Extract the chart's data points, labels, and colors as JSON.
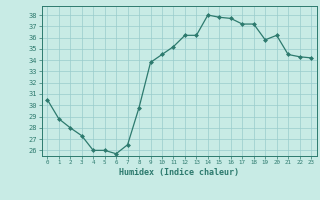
{
  "x": [
    0,
    1,
    2,
    3,
    4,
    5,
    6,
    7,
    8,
    9,
    10,
    11,
    12,
    13,
    14,
    15,
    16,
    17,
    18,
    19,
    20,
    21,
    22,
    23
  ],
  "y": [
    30.5,
    28.8,
    28.0,
    27.3,
    26.0,
    26.0,
    25.7,
    26.5,
    29.8,
    33.8,
    34.5,
    35.2,
    36.2,
    36.2,
    38.0,
    37.8,
    37.7,
    37.2,
    37.2,
    35.8,
    36.2,
    34.5,
    34.3,
    34.2
  ],
  "xlabel": "Humidex (Indice chaleur)",
  "ylim": [
    25.5,
    38.8
  ],
  "xlim": [
    -0.5,
    23.5
  ],
  "yticks": [
    26,
    27,
    28,
    29,
    30,
    31,
    32,
    33,
    34,
    35,
    36,
    37,
    38
  ],
  "xticks": [
    0,
    1,
    2,
    3,
    4,
    5,
    6,
    7,
    8,
    9,
    10,
    11,
    12,
    13,
    14,
    15,
    16,
    17,
    18,
    19,
    20,
    21,
    22,
    23
  ],
  "line_color": "#2d7a6e",
  "marker_color": "#2d7a6e",
  "bg_color": "#c8ebe5",
  "grid_color": "#99cccc",
  "text_color": "#2d7a6e",
  "tick_color": "#2d7a6e",
  "axis_color": "#2d7a6e",
  "font_family": "monospace"
}
